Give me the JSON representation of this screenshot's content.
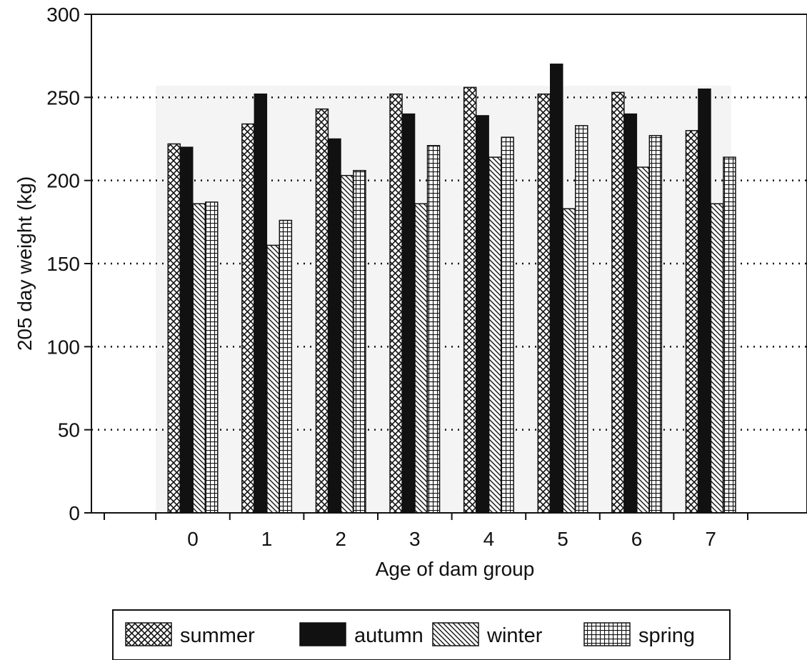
{
  "chart_data": {
    "type": "bar",
    "xlabel": "Age of dam group",
    "ylabel": "205 day weight (kg)",
    "ylim": [
      0,
      300
    ],
    "yticks": [
      0,
      50,
      100,
      150,
      200,
      250,
      300
    ],
    "grid": "horizontal dotted",
    "legend_position": "bottom",
    "categories": [
      "0",
      "1",
      "2",
      "3",
      "4",
      "5",
      "6",
      "7"
    ],
    "series": [
      {
        "name": "summer",
        "pattern": "crosshatch",
        "values": [
          222,
          234,
          243,
          252,
          256,
          252,
          253,
          230
        ]
      },
      {
        "name": "autumn",
        "pattern": "solid",
        "values": [
          220,
          252,
          225,
          240,
          239,
          270,
          240,
          255
        ]
      },
      {
        "name": "winter",
        "pattern": "diagonal",
        "values": [
          186,
          161,
          203,
          186,
          214,
          183,
          208,
          186
        ]
      },
      {
        "name": "spring",
        "pattern": "grid",
        "values": [
          187,
          176,
          206,
          221,
          226,
          233,
          227,
          214
        ]
      }
    ]
  },
  "colors": {
    "ink": "#111111",
    "plot_shade": "#f4f4f4",
    "background": "#ffffff"
  }
}
